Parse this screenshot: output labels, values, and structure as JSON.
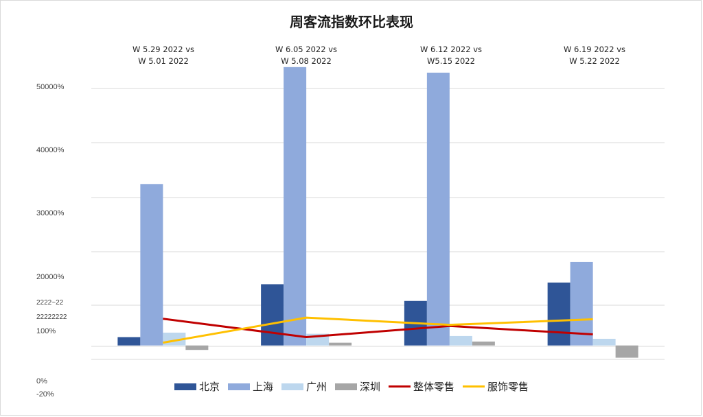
{
  "chart_data": {
    "type": "bar",
    "title": "周客流指数环比表现",
    "categories": [
      "W  5.29 2022  vs\nW 5.01 2022",
      "W 6.05 2022  vs\nW 5.08 2022",
      "W 6.12 2022  vs\nW5.15 2022",
      "W 6.19 2022  vs\nW 5.22 2022"
    ],
    "ytick_labels": [
      "50000%",
      "40000%",
      "30000%",
      "20000%",
      "2222~22",
      "22222222",
      "100%",
      "0%",
      "-20%"
    ],
    "ylim": [
      -2500,
      48500
    ],
    "grid": true,
    "legend_position": "bottom",
    "series": [
      {
        "name": "北京",
        "kind": "bar",
        "color": "#2f5597",
        "values": [
          1500,
          11000,
          8000,
          11300
        ]
      },
      {
        "name": "上海",
        "kind": "bar",
        "color": "#8faadc",
        "values": [
          29000,
          50000,
          49000,
          15000
        ]
      },
      {
        "name": "广州",
        "kind": "bar",
        "color": "#bdd7ee",
        "values": [
          2300,
          2100,
          1700,
          1200
        ]
      },
      {
        "name": "深圳",
        "kind": "bar",
        "color": "#a6a6a6",
        "values": [
          -800,
          500,
          700,
          -2200
        ]
      },
      {
        "name": "整体零售",
        "kind": "line",
        "color": "#c00000",
        "values": [
          4800,
          1500,
          3500,
          2000
        ]
      },
      {
        "name": "服饰零售",
        "kind": "line",
        "color": "#ffc000",
        "values": [
          500,
          5000,
          3700,
          4700
        ]
      }
    ]
  }
}
